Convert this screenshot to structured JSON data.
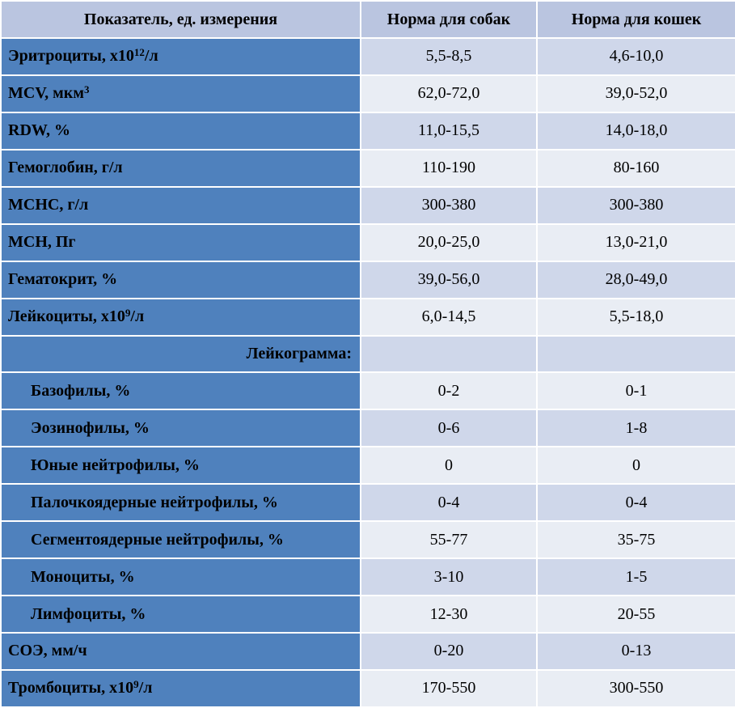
{
  "header": {
    "col0": "Показатель, ед. измерения",
    "col1": "Норма для собак",
    "col2": "Норма для кошек"
  },
  "rows": [
    {
      "label": "Эритроциты, x10",
      "sup": "12",
      "after": "/л",
      "dogs": "5,5-8,5",
      "cats": "4,6-10,0"
    },
    {
      "label": "MCV, мкм",
      "sup": "3",
      "after": "",
      "dogs": "62,0-72,0",
      "cats": "39,0-52,0"
    },
    {
      "label": "RDW, %",
      "dogs": "11,0-15,5",
      "cats": "14,0-18,0"
    },
    {
      "label": "Гемоглобин, г/л",
      "dogs": "110-190",
      "cats": "80-160"
    },
    {
      "label": "MCHC, г/л",
      "dogs": "300-380",
      "cats": "300-380"
    },
    {
      "label": "MCH, Пг",
      "dogs": "20,0-25,0",
      "cats": "13,0-21,0"
    },
    {
      "label": "Гематокрит, %",
      "dogs": "39,0-56,0",
      "cats": "28,0-49,0"
    },
    {
      "label": "Лейкоциты, x10",
      "sup": "9",
      "after": "/л",
      "dogs": "6,0-14,5",
      "cats": "5,5-18,0"
    },
    {
      "label": "Лейкограмма:",
      "dogs": "",
      "cats": ""
    },
    {
      "label": "Базофилы, %",
      "dogs": "0-2",
      "cats": "0-1"
    },
    {
      "label": "Эозинофилы, %",
      "dogs": "0-6",
      "cats": "1-8"
    },
    {
      "label": "Юные нейтрофилы, %",
      "dogs": "0",
      "cats": "0"
    },
    {
      "label": "Палочкоядерные нейтрофилы, %",
      "dogs": "0-4",
      "cats": "0-4"
    },
    {
      "label": "Сегментоядерные нейтрофилы, %",
      "dogs": "55-77",
      "cats": "35-75"
    },
    {
      "label": "Моноциты, %",
      "dogs": "3-10",
      "cats": "1-5"
    },
    {
      "label": "Лимфоциты, %",
      "dogs": "12-30",
      "cats": "20-55"
    },
    {
      "label": "СОЭ, мм/ч",
      "dogs": "0-20",
      "cats": "0-13"
    },
    {
      "label": "Тромбоциты, x10",
      "sup": "9",
      "after": "/л",
      "dogs": "170-550",
      "cats": "300-550"
    }
  ],
  "colors": {
    "header_bg": "#bac5e0",
    "label_bg": "#4f81bd",
    "value_band_dark": "#cfd7ea",
    "value_band_light": "#e9edf4"
  }
}
